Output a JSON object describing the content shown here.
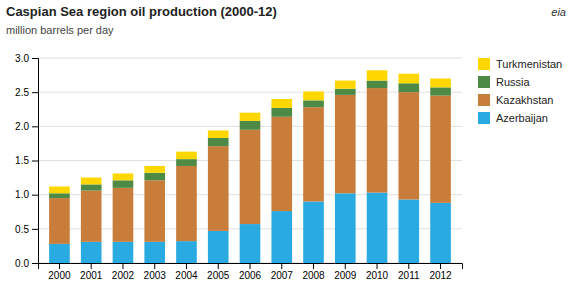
{
  "chart_data": {
    "type": "bar",
    "stacked": true,
    "title": "Caspian Sea region oil production (2000-12)",
    "subtitle": "million barrels per day",
    "annotations": [
      "eia"
    ],
    "categories": [
      "2000",
      "2001",
      "2002",
      "2003",
      "2004",
      "2005",
      "2006",
      "2007",
      "2008",
      "2009",
      "2010",
      "2011",
      "2012"
    ],
    "series": [
      {
        "name": "Azerbaijan",
        "color": "#29ABE2",
        "values": [
          0.28,
          0.31,
          0.31,
          0.31,
          0.32,
          0.47,
          0.57,
          0.76,
          0.9,
          1.02,
          1.03,
          0.93,
          0.88
        ]
      },
      {
        "name": "Kazakhstan",
        "color": "#C97D3A",
        "values": [
          0.67,
          0.75,
          0.79,
          0.9,
          1.1,
          1.24,
          1.38,
          1.38,
          1.38,
          1.44,
          1.53,
          1.57,
          1.57
        ]
      },
      {
        "name": "Russia",
        "color": "#4D8A45",
        "values": [
          0.07,
          0.09,
          0.11,
          0.11,
          0.1,
          0.12,
          0.13,
          0.13,
          0.1,
          0.09,
          0.11,
          0.13,
          0.12
        ]
      },
      {
        "name": "Turkmenistan",
        "color": "#FFD700",
        "values": [
          0.1,
          0.1,
          0.1,
          0.1,
          0.11,
          0.11,
          0.12,
          0.13,
          0.13,
          0.12,
          0.15,
          0.14,
          0.13
        ]
      }
    ],
    "ylim": [
      0,
      3.0
    ],
    "yticks": [
      {
        "value": 0.0,
        "label": "0.0"
      },
      0.5,
      {
        "value": 1.0,
        "label": "1.0"
      },
      1.5,
      {
        "value": 2.0,
        "label": "2.0"
      },
      2.5,
      {
        "value": 3.0,
        "label": "3.0"
      }
    ],
    "grid": true,
    "legend": "right"
  }
}
